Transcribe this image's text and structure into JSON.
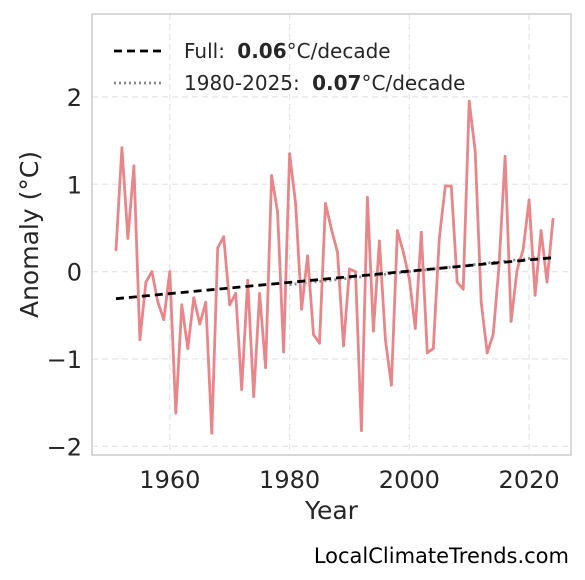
{
  "chart_data": {
    "type": "line",
    "title": "",
    "xlabel": "Year",
    "ylabel": "Anomaly (°C)",
    "xlim": [
      1947,
      2027
    ],
    "ylim": [
      -2.1,
      2.95
    ],
    "xticks": [
      1960,
      1980,
      2000,
      2020
    ],
    "yticks": [
      -2,
      -1,
      0,
      1,
      2
    ],
    "ytick_labels": [
      "−2",
      "−1",
      "0",
      "1",
      "2"
    ],
    "grid": true,
    "legend_position": "top-left",
    "colors": {
      "series": "#e8868a",
      "trend_full": "#000000",
      "trend_recent": "#888888"
    },
    "series": [
      {
        "name": "",
        "x": [
          1951,
          1952,
          1953,
          1954,
          1955,
          1956,
          1957,
          1958,
          1959,
          1960,
          1961,
          1962,
          1963,
          1964,
          1965,
          1966,
          1967,
          1968,
          1969,
          1970,
          1971,
          1972,
          1973,
          1974,
          1975,
          1976,
          1977,
          1978,
          1979,
          1980,
          1981,
          1982,
          1983,
          1984,
          1985,
          1986,
          1987,
          1988,
          1989,
          1990,
          1991,
          1992,
          1993,
          1994,
          1995,
          1996,
          1997,
          1998,
          1999,
          2000,
          2001,
          2002,
          2003,
          2004,
          2005,
          2006,
          2007,
          2008,
          2009,
          2010,
          2011,
          2012,
          2013,
          2014,
          2015,
          2016,
          2017,
          2018,
          2019,
          2020,
          2021,
          2022,
          2023,
          2024
        ],
        "values": [
          0.25,
          1.42,
          0.38,
          1.21,
          -0.78,
          -0.12,
          0.0,
          -0.35,
          -0.55,
          0.0,
          -1.62,
          -0.38,
          -0.88,
          -0.3,
          -0.6,
          -0.35,
          -1.85,
          0.27,
          0.4,
          -0.38,
          -0.25,
          -1.35,
          -0.1,
          -1.43,
          -0.25,
          -1.1,
          1.1,
          0.68,
          -0.92,
          1.35,
          0.78,
          -0.43,
          0.18,
          -0.72,
          -0.82,
          0.78,
          0.48,
          0.22,
          -0.85,
          0.03,
          0.0,
          -1.82,
          0.85,
          -0.68,
          0.35,
          -0.78,
          -1.3,
          0.47,
          0.22,
          -0.08,
          -0.65,
          0.45,
          -0.93,
          -0.88,
          0.38,
          0.98,
          0.98,
          -0.12,
          -0.2,
          1.95,
          1.38,
          -0.35,
          -0.93,
          -0.72,
          0.08,
          1.32,
          -0.57,
          0.02,
          0.25,
          0.82,
          -0.27,
          0.47,
          -0.12,
          0.6
        ]
      }
    ],
    "trends": [
      {
        "label": "Full:",
        "value": "0.06",
        "unit": "°C/decade",
        "style": "dashed",
        "x": [
          1951,
          2024
        ],
        "y": [
          -0.31,
          0.16
        ]
      },
      {
        "label": "1980-2025:",
        "value": "0.07",
        "unit": "°C/decade",
        "style": "dotted",
        "x": [
          1980,
          2024
        ],
        "y": [
          -0.15,
          0.18
        ]
      }
    ]
  },
  "credit": "LocalClimateTrends.com"
}
